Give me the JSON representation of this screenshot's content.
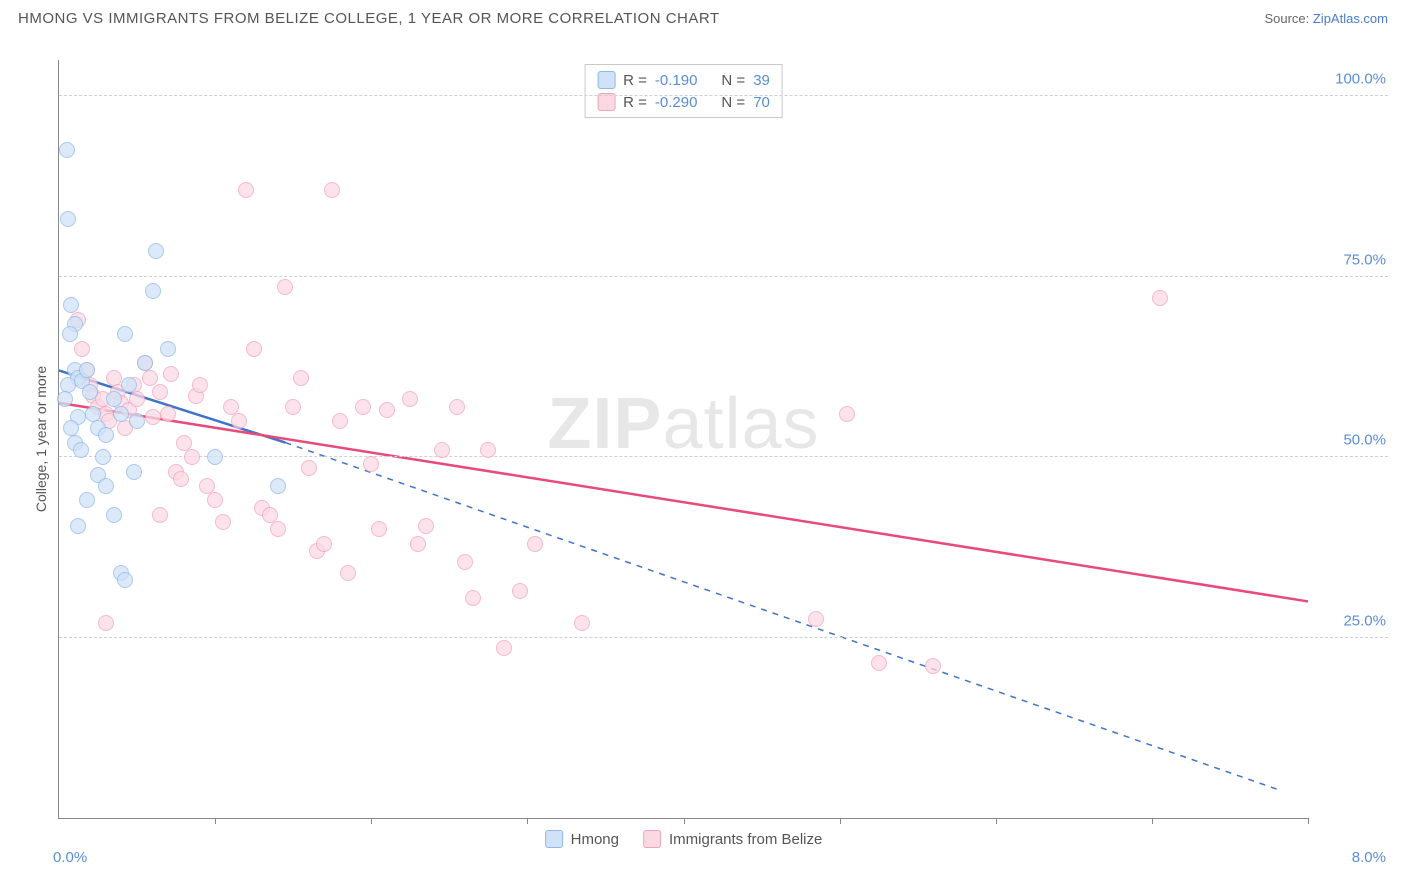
{
  "header": {
    "title": "HMONG VS IMMIGRANTS FROM BELIZE COLLEGE, 1 YEAR OR MORE CORRELATION CHART",
    "source_prefix": "Source: ",
    "source_link": "ZipAtlas.com"
  },
  "chart": {
    "type": "scatter",
    "ylabel": "College, 1 year or more",
    "xlim": [
      0,
      8
    ],
    "ylim": [
      0,
      105
    ],
    "xtick_label_left": "0.0%",
    "xtick_label_right": "8.0%",
    "xtick_positions": [
      1.0,
      2.0,
      3.0,
      4.0,
      5.0,
      6.0,
      7.0,
      8.0
    ],
    "ytick_positions": [
      25,
      50,
      75,
      100
    ],
    "ytick_labels": [
      "25.0%",
      "50.0%",
      "75.0%",
      "100.0%"
    ],
    "grid_color": "#d0d0d0",
    "axis_color": "#888888",
    "background_color": "#ffffff",
    "watermark": "ZIPatlas",
    "series": [
      {
        "name": "Hmong",
        "R": "-0.190",
        "N": "39",
        "fill": "#cfe2f7",
        "stroke": "#8fb8e8",
        "line_color": "#3f74c9",
        "trend": {
          "x1": 0.0,
          "y1": 62.0,
          "x2": 1.45,
          "y2": 52.0,
          "dash_x2": 7.8,
          "dash_y2": 4.0
        },
        "points": [
          [
            0.05,
            92.5
          ],
          [
            0.06,
            83.0
          ],
          [
            0.08,
            71.0
          ],
          [
            0.1,
            68.5
          ],
          [
            0.07,
            67.0
          ],
          [
            0.1,
            62.0
          ],
          [
            0.12,
            61.0
          ],
          [
            0.06,
            60.0
          ],
          [
            0.04,
            58.0
          ],
          [
            0.15,
            60.5
          ],
          [
            0.18,
            62.0
          ],
          [
            0.2,
            59.0
          ],
          [
            0.12,
            55.5
          ],
          [
            0.08,
            54.0
          ],
          [
            0.1,
            52.0
          ],
          [
            0.14,
            51.0
          ],
          [
            0.22,
            56.0
          ],
          [
            0.25,
            54.0
          ],
          [
            0.28,
            50.0
          ],
          [
            0.3,
            53.0
          ],
          [
            0.35,
            58.0
          ],
          [
            0.4,
            56.0
          ],
          [
            0.42,
            67.0
          ],
          [
            0.45,
            60.0
          ],
          [
            0.5,
            55.0
          ],
          [
            0.55,
            63.0
          ],
          [
            0.6,
            73.0
          ],
          [
            0.62,
            78.5
          ],
          [
            0.7,
            65.0
          ],
          [
            0.25,
            47.5
          ],
          [
            0.3,
            46.0
          ],
          [
            0.35,
            42.0
          ],
          [
            0.18,
            44.0
          ],
          [
            0.4,
            34.0
          ],
          [
            0.42,
            33.0
          ],
          [
            0.48,
            48.0
          ],
          [
            0.12,
            40.5
          ],
          [
            1.4,
            46.0
          ],
          [
            1.0,
            50.0
          ]
        ]
      },
      {
        "name": "Immigrants from Belize",
        "R": "-0.290",
        "N": "70",
        "fill": "#fbd9e3",
        "stroke": "#f3a2bc",
        "line_color": "#e84a7a",
        "trend": {
          "x1": 0.0,
          "y1": 57.5,
          "x2": 8.0,
          "y2": 30.0
        },
        "points": [
          [
            0.12,
            69.0
          ],
          [
            0.15,
            65.0
          ],
          [
            0.18,
            62.0
          ],
          [
            0.2,
            60.0
          ],
          [
            0.22,
            58.5
          ],
          [
            0.25,
            57.0
          ],
          [
            0.28,
            58.0
          ],
          [
            0.3,
            56.0
          ],
          [
            0.32,
            55.0
          ],
          [
            0.35,
            61.0
          ],
          [
            0.38,
            59.0
          ],
          [
            0.4,
            57.5
          ],
          [
            0.42,
            54.0
          ],
          [
            0.45,
            56.5
          ],
          [
            0.48,
            60.0
          ],
          [
            0.5,
            58.0
          ],
          [
            0.55,
            63.0
          ],
          [
            0.58,
            61.0
          ],
          [
            0.6,
            55.5
          ],
          [
            0.65,
            59.0
          ],
          [
            0.7,
            56.0
          ],
          [
            0.72,
            61.5
          ],
          [
            0.75,
            48.0
          ],
          [
            0.78,
            47.0
          ],
          [
            0.8,
            52.0
          ],
          [
            0.85,
            50.0
          ],
          [
            0.88,
            58.5
          ],
          [
            0.9,
            60.0
          ],
          [
            0.95,
            46.0
          ],
          [
            1.0,
            44.0
          ],
          [
            1.05,
            41.0
          ],
          [
            1.1,
            57.0
          ],
          [
            1.15,
            55.0
          ],
          [
            1.2,
            87.0
          ],
          [
            1.25,
            65.0
          ],
          [
            1.3,
            43.0
          ],
          [
            1.35,
            42.0
          ],
          [
            1.4,
            40.0
          ],
          [
            1.45,
            73.5
          ],
          [
            1.5,
            57.0
          ],
          [
            1.55,
            61.0
          ],
          [
            1.6,
            48.5
          ],
          [
            1.65,
            37.0
          ],
          [
            1.7,
            38.0
          ],
          [
            1.75,
            87.0
          ],
          [
            1.8,
            55.0
          ],
          [
            1.85,
            34.0
          ],
          [
            1.95,
            57.0
          ],
          [
            2.0,
            49.0
          ],
          [
            2.05,
            40.0
          ],
          [
            2.1,
            56.5
          ],
          [
            2.25,
            58.0
          ],
          [
            2.3,
            38.0
          ],
          [
            2.35,
            40.5
          ],
          [
            2.45,
            51.0
          ],
          [
            2.55,
            57.0
          ],
          [
            2.6,
            35.5
          ],
          [
            2.65,
            30.5
          ],
          [
            2.75,
            51.0
          ],
          [
            2.85,
            23.5
          ],
          [
            2.95,
            31.5
          ],
          [
            3.05,
            38.0
          ],
          [
            3.35,
            27.0
          ],
          [
            4.85,
            27.5
          ],
          [
            5.05,
            56.0
          ],
          [
            5.25,
            21.5
          ],
          [
            5.6,
            21.0
          ],
          [
            7.05,
            72.0
          ],
          [
            0.3,
            27.0
          ],
          [
            0.65,
            42.0
          ]
        ]
      }
    ]
  }
}
